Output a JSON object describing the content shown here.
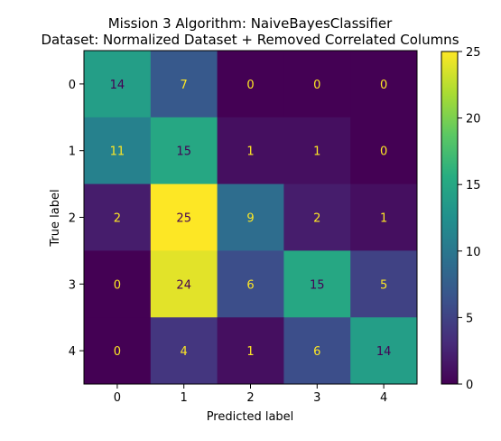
{
  "chart_data": {
    "type": "heatmap",
    "title": "Mission 3 Algorithm: NaiveBayesClassifier",
    "subtitle": "Dataset: Normalized Dataset + Removed Correlated Columns",
    "xlabel": "Predicted label",
    "ylabel": "True label",
    "x_categories": [
      "0",
      "1",
      "2",
      "3",
      "4"
    ],
    "y_categories": [
      "0",
      "1",
      "2",
      "3",
      "4"
    ],
    "values": [
      [
        14,
        7,
        0,
        0,
        0
      ],
      [
        11,
        15,
        1,
        1,
        0
      ],
      [
        2,
        25,
        9,
        2,
        1
      ],
      [
        0,
        24,
        6,
        15,
        5
      ],
      [
        0,
        4,
        1,
        6,
        14
      ]
    ],
    "colormap": "viridis",
    "colorbar": {
      "min": 0,
      "max": 25,
      "ticks": [
        "0",
        "5",
        "10",
        "15",
        "20",
        "25"
      ]
    },
    "text_colors": {
      "on_dark": "#fde725",
      "on_light": "#440154"
    }
  }
}
